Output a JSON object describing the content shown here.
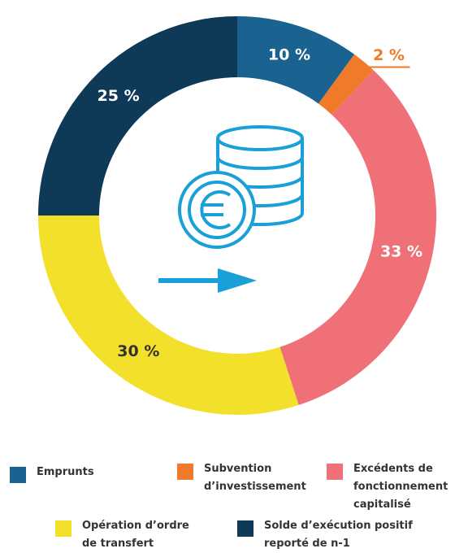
{
  "chart_data": {
    "type": "donut",
    "categories": [
      "Emprunts",
      "Subvention d’investissement",
      "Excédents de fonctionnement capitalisé",
      "Opération d’ordre de transfert",
      "Solde d’exécution positif reporté de n-1"
    ],
    "values": [
      10,
      2,
      33,
      30,
      25
    ],
    "value_labels": [
      "10 %",
      "2 %",
      "33 %",
      "30 %",
      "25 %"
    ],
    "colors": [
      "#1a6391",
      "#f07a2a",
      "#f07078",
      "#f2e02a",
      "#0e3a57"
    ]
  }
}
